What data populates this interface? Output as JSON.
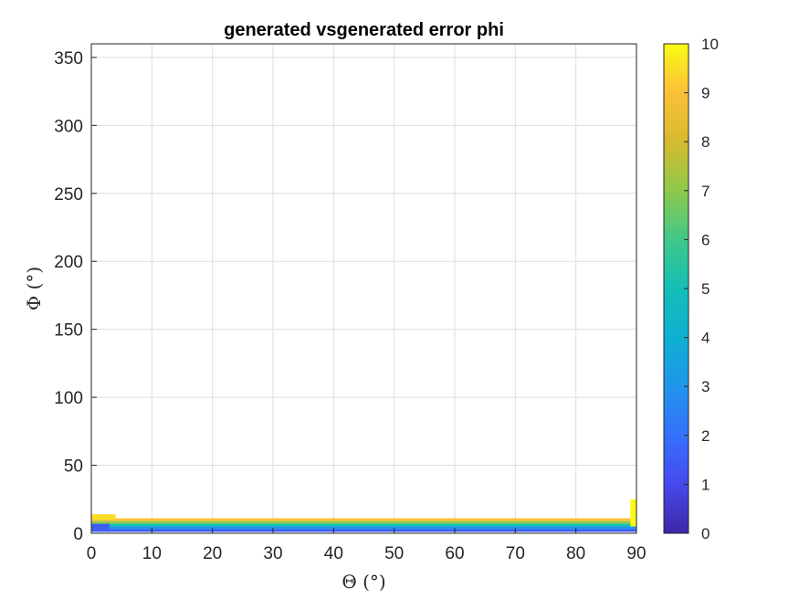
{
  "chart_data": {
    "type": "heatmap",
    "title": "generated vsgenerated error phi",
    "xlabel": "Θ (°)",
    "ylabel": "Φ (°)",
    "xlim": [
      0,
      90
    ],
    "ylim": [
      0,
      360
    ],
    "xticks": [
      0,
      10,
      20,
      30,
      40,
      50,
      60,
      70,
      80,
      90
    ],
    "yticks": [
      0,
      50,
      100,
      150,
      200,
      250,
      300,
      350
    ],
    "grid": true,
    "colormap": "parula",
    "colorbar": {
      "position": "right",
      "limits": [
        0,
        10
      ],
      "ticks": [
        0,
        1,
        2,
        3,
        4,
        5,
        6,
        7,
        8,
        9,
        10
      ]
    },
    "bands": [
      {
        "phi_range": [
          1,
          3
        ],
        "theta_range": [
          0,
          90
        ],
        "value": 1.5
      },
      {
        "phi_range": [
          3,
          5
        ],
        "theta_range": [
          0,
          90
        ],
        "value": 3
      },
      {
        "phi_range": [
          5,
          7
        ],
        "theta_range": [
          0,
          90
        ],
        "value": 5
      },
      {
        "phi_range": [
          7,
          9
        ],
        "theta_range": [
          0,
          90
        ],
        "value": 7
      },
      {
        "phi_range": [
          9,
          11
        ],
        "theta_range": [
          0,
          90
        ],
        "value": 9
      }
    ],
    "edge_features": [
      {
        "theta_range": [
          89,
          90
        ],
        "phi_range": [
          5,
          25
        ],
        "value": 10
      },
      {
        "theta_range": [
          0,
          4
        ],
        "phi_range": [
          10,
          14
        ],
        "value": 9.5
      },
      {
        "theta_range": [
          0,
          3
        ],
        "phi_range": [
          3,
          7
        ],
        "value": 1.5
      }
    ]
  }
}
